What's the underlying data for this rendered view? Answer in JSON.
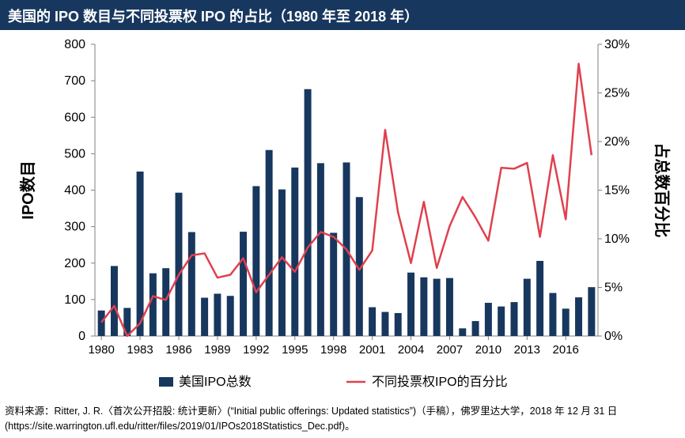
{
  "title": "美国的 IPO 数目与不同投票权 IPO 的占比（1980 年至 2018 年）",
  "source": {
    "label": "资料来源：",
    "text": "Ritter, J. R.〈首次公开招股: 统计更新〉(“Initial public offerings: Updated statistics”)（手稿），佛罗里达大学，2018 年 12 月 31 日(https://site.warrington.ufl.edu/ritter/files/2019/01/IPOs2018Statistics_Dec.pdf)。"
  },
  "colors": {
    "bar": "#17375e",
    "line": "#e0404e",
    "title_bg": "#17375e"
  },
  "chart_data": {
    "type": "bar+line",
    "title": "美国的 IPO 数目与不同投票权 IPO 的占比（1980 年至 2018 年）",
    "x": [
      1980,
      1981,
      1982,
      1983,
      1984,
      1985,
      1986,
      1987,
      1988,
      1989,
      1990,
      1991,
      1992,
      1993,
      1994,
      1995,
      1996,
      1997,
      1998,
      1999,
      2000,
      2001,
      2002,
      2003,
      2004,
      2005,
      2006,
      2007,
      2008,
      2009,
      2010,
      2011,
      2012,
      2013,
      2014,
      2015,
      2016,
      2017,
      2018
    ],
    "x_tick_labels": [
      "1980",
      "1983",
      "1986",
      "1989",
      "1992",
      "1995",
      "1998",
      "2001",
      "2004",
      "2007",
      "2010",
      "2013",
      "2016"
    ],
    "x_tick_values": [
      1980,
      1983,
      1986,
      1989,
      1992,
      1995,
      1998,
      2001,
      2004,
      2007,
      2010,
      2013,
      2016
    ],
    "ylabel_left": "IPO数目",
    "ylabel_right": "占总数百分比",
    "ylim_left": [
      0,
      800
    ],
    "yticks_left": [
      "0",
      "100",
      "200",
      "300",
      "400",
      "500",
      "600",
      "700",
      "800"
    ],
    "ylim_right": [
      0,
      30
    ],
    "yticks_right": [
      "0%",
      "5%",
      "10%",
      "15%",
      "20%",
      "25%",
      "30%"
    ],
    "legend_position": "bottom",
    "series": [
      {
        "name": "美国IPO总数",
        "kind": "bar",
        "values": [
          70,
          192,
          77,
          451,
          172,
          186,
          393,
          285,
          105,
          116,
          110,
          286,
          411,
          510,
          402,
          462,
          677,
          474,
          283,
          476,
          381,
          79,
          66,
          63,
          174,
          161,
          157,
          159,
          21,
          41,
          91,
          81,
          93,
          157,
          206,
          118,
          75,
          106,
          134
        ]
      },
      {
        "name": "不同投票权IPO的百分比",
        "kind": "line",
        "values": [
          1.4,
          3.1,
          0.0,
          1.3,
          4.1,
          3.7,
          6.3,
          8.3,
          8.5,
          6.0,
          6.3,
          8.0,
          4.5,
          6.3,
          8.1,
          6.6,
          9.1,
          10.7,
          10.2,
          8.9,
          6.8,
          8.8,
          21.2,
          12.7,
          7.5,
          13.8,
          7.0,
          11.3,
          14.3,
          12.2,
          9.8,
          17.3,
          17.2,
          17.8,
          10.2,
          18.6,
          12.0,
          28.0,
          18.6
        ]
      }
    ]
  }
}
